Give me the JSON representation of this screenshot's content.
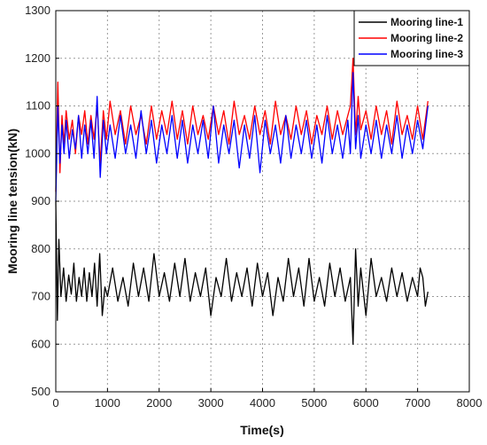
{
  "chart_data": {
    "type": "line",
    "title": "",
    "xlabel": "Time(s)",
    "ylabel": "Mooring line tension(kN)",
    "xlim": [
      0,
      8000
    ],
    "ylim": [
      500,
      1300
    ],
    "xticks": [
      0,
      1000,
      2000,
      3000,
      4000,
      5000,
      6000,
      7000,
      8000
    ],
    "yticks": [
      500,
      600,
      700,
      800,
      900,
      1000,
      1100,
      1200,
      1300
    ],
    "grid": true,
    "legend_position": "top-right",
    "series": [
      {
        "name": "Mooring line-1",
        "color": "#000000",
        "x": [
          0,
          30,
          60,
          100,
          150,
          200,
          250,
          300,
          350,
          400,
          450,
          500,
          550,
          600,
          650,
          700,
          750,
          800,
          850,
          900,
          950,
          1000,
          1100,
          1200,
          1300,
          1400,
          1500,
          1600,
          1700,
          1800,
          1900,
          2000,
          2100,
          2200,
          2300,
          2400,
          2500,
          2600,
          2700,
          2800,
          2900,
          3000,
          3100,
          3200,
          3300,
          3400,
          3500,
          3600,
          3700,
          3800,
          3900,
          4000,
          4100,
          4200,
          4300,
          4400,
          4500,
          4600,
          4700,
          4800,
          4900,
          5000,
          5100,
          5200,
          5300,
          5400,
          5500,
          5600,
          5700,
          5750,
          5800,
          5850,
          5900,
          6000,
          6100,
          6200,
          6300,
          6400,
          6500,
          6600,
          6700,
          6800,
          6900,
          7000,
          7050,
          7100,
          7150,
          7200
        ],
        "y": [
          900,
          650,
          820,
          700,
          760,
          690,
          745,
          705,
          770,
          690,
          740,
          700,
          760,
          690,
          750,
          700,
          770,
          680,
          790,
          660,
          720,
          700,
          760,
          690,
          740,
          680,
          770,
          700,
          760,
          690,
          790,
          700,
          750,
          690,
          770,
          700,
          780,
          690,
          750,
          700,
          760,
          660,
          740,
          700,
          780,
          690,
          750,
          700,
          760,
          680,
          770,
          700,
          750,
          660,
          740,
          690,
          780,
          700,
          760,
          680,
          780,
          690,
          740,
          680,
          770,
          700,
          760,
          690,
          740,
          600,
          800,
          680,
          760,
          660,
          780,
          700,
          740,
          690,
          760,
          700,
          750,
          690,
          740,
          700,
          760,
          740,
          680,
          710
        ]
      },
      {
        "name": "Mooring line-2",
        "color": "#ff0000",
        "x": [
          0,
          40,
          80,
          120,
          160,
          200,
          260,
          320,
          380,
          440,
          500,
          560,
          620,
          680,
          740,
          800,
          860,
          920,
          980,
          1050,
          1150,
          1250,
          1350,
          1450,
          1550,
          1650,
          1750,
          1850,
          1950,
          2050,
          2150,
          2250,
          2350,
          2450,
          2550,
          2650,
          2750,
          2850,
          2950,
          3050,
          3150,
          3250,
          3350,
          3450,
          3550,
          3650,
          3750,
          3850,
          3950,
          4050,
          4150,
          4250,
          4350,
          4450,
          4550,
          4650,
          4750,
          4850,
          4950,
          5050,
          5150,
          5250,
          5350,
          5450,
          5550,
          5650,
          5700,
          5750,
          5800,
          5850,
          5900,
          6000,
          6100,
          6200,
          6300,
          6400,
          6500,
          6600,
          6700,
          6800,
          6900,
          7000,
          7100,
          7200
        ],
        "y": [
          920,
          1150,
          960,
          1080,
          1020,
          1090,
          1030,
          1070,
          1000,
          1080,
          1040,
          1090,
          1020,
          1080,
          1030,
          1100,
          980,
          1090,
          1030,
          1110,
          1040,
          1090,
          1020,
          1100,
          1040,
          1080,
          1020,
          1100,
          1030,
          1090,
          1040,
          1110,
          1030,
          1090,
          1020,
          1100,
          1040,
          1080,
          1030,
          1100,
          1040,
          1090,
          1020,
          1110,
          1040,
          1080,
          1030,
          1100,
          1040,
          1090,
          1020,
          1110,
          1040,
          1080,
          1030,
          1100,
          1040,
          1090,
          1020,
          1080,
          1040,
          1100,
          1030,
          1090,
          1040,
          1080,
          1100,
          1200,
          1040,
          1120,
          1050,
          1090,
          1030,
          1100,
          1040,
          1090,
          1020,
          1110,
          1040,
          1080,
          1030,
          1100,
          1030,
          1110
        ]
      },
      {
        "name": "Mooring line-3",
        "color": "#0000ff",
        "x": [
          0,
          40,
          80,
          120,
          160,
          200,
          260,
          320,
          380,
          440,
          500,
          560,
          620,
          680,
          740,
          800,
          860,
          920,
          980,
          1050,
          1150,
          1250,
          1350,
          1450,
          1550,
          1650,
          1750,
          1850,
          1950,
          2050,
          2150,
          2250,
          2350,
          2450,
          2550,
          2650,
          2750,
          2850,
          2950,
          3050,
          3150,
          3250,
          3350,
          3450,
          3550,
          3650,
          3750,
          3850,
          3950,
          4050,
          4150,
          4250,
          4350,
          4450,
          4550,
          4650,
          4750,
          4850,
          4950,
          5050,
          5150,
          5250,
          5350,
          5450,
          5550,
          5650,
          5700,
          5750,
          5800,
          5850,
          5900,
          6000,
          6100,
          6200,
          6300,
          6400,
          6500,
          6600,
          6700,
          6800,
          6900,
          7000,
          7100,
          7200
        ],
        "y": [
          900,
          1100,
          980,
          1060,
          1000,
          1070,
          990,
          1050,
          1010,
          1080,
          990,
          1060,
          1000,
          1070,
          990,
          1120,
          950,
          1070,
          1000,
          1060,
          990,
          1080,
          1000,
          1060,
          990,
          1090,
          1000,
          1070,
          980,
          1060,
          1000,
          1080,
          990,
          1070,
          980,
          1060,
          1000,
          1070,
          990,
          1100,
          980,
          1060,
          1000,
          1070,
          970,
          1060,
          990,
          1080,
          960,
          1070,
          1000,
          1060,
          980,
          1080,
          990,
          1060,
          1000,
          1070,
          990,
          1060,
          980,
          1080,
          1000,
          1060,
          990,
          1070,
          1000,
          1170,
          1010,
          1080,
          990,
          1060,
          1000,
          1070,
          990,
          1060,
          1000,
          1080,
          990,
          1060,
          1000,
          1070,
          1010,
          1100
        ]
      }
    ]
  }
}
